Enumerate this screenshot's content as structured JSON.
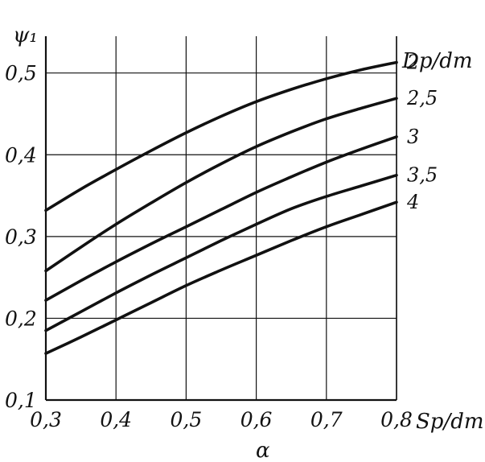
{
  "chart_data": {
    "type": "line",
    "title": "",
    "ylabel": "ψ₁",
    "xlabel_right": "Sp/dт",
    "xlabel_bottom": "α",
    "legend_title": "Dp/dт",
    "x_ticks": [
      "0,3",
      "0,4",
      "0,5",
      "0,6",
      "0,7",
      "0,8"
    ],
    "y_ticks": [
      "0,1",
      "0,2",
      "0,3",
      "0,4",
      "0,5"
    ],
    "xlim": [
      0.3,
      0.8
    ],
    "ylim": [
      0.1,
      0.545
    ],
    "grid": true,
    "x": [
      0.3,
      0.35,
      0.4,
      0.45,
      0.5,
      0.55,
      0.6,
      0.65,
      0.7,
      0.75,
      0.8
    ],
    "series": [
      {
        "name": "2",
        "values": [
          0.332,
          0.358,
          0.382,
          0.405,
          0.427,
          0.447,
          0.465,
          0.48,
          0.493,
          0.504,
          0.513
        ]
      },
      {
        "name": "2,5",
        "values": [
          0.258,
          0.287,
          0.315,
          0.341,
          0.366,
          0.389,
          0.41,
          0.428,
          0.444,
          0.457,
          0.469
        ]
      },
      {
        "name": "3",
        "values": [
          0.222,
          0.246,
          0.269,
          0.291,
          0.312,
          0.333,
          0.354,
          0.373,
          0.391,
          0.407,
          0.422
        ]
      },
      {
        "name": "3,5",
        "values": [
          0.185,
          0.208,
          0.231,
          0.253,
          0.274,
          0.295,
          0.315,
          0.334,
          0.349,
          0.362,
          0.375
        ]
      },
      {
        "name": "4",
        "values": [
          0.157,
          0.177,
          0.198,
          0.219,
          0.24,
          0.259,
          0.277,
          0.295,
          0.312,
          0.327,
          0.342
        ]
      }
    ],
    "colors": {
      "line": "#111111",
      "grid": "#111111",
      "background": "#ffffff"
    }
  }
}
